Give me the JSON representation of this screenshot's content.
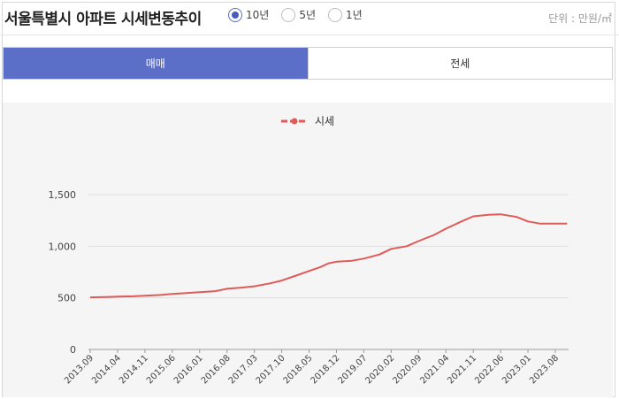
{
  "header": {
    "title": "서울특별시 아파트 시세변동추이",
    "period_options": [
      "10년",
      "5년",
      "1년"
    ],
    "selected_period": "10년",
    "unit": "단위 : 만원/㎡"
  },
  "tabs": [
    {
      "label": "매매",
      "active": true
    },
    {
      "label": "전세",
      "active": false
    }
  ],
  "colors": {
    "accent": "#5b6ec8",
    "series": "#e05a5a",
    "chart_bg": "#f5f5f5"
  },
  "chart_data": {
    "type": "line",
    "legend": "시세",
    "legend_position": "top-center",
    "grid": true,
    "ylim": [
      0,
      1500
    ],
    "yticks": [
      0,
      500,
      1000,
      1500
    ],
    "ytick_labels": [
      "0",
      "500",
      "1,000",
      "1,500"
    ],
    "xtick_labels": [
      "2013.09",
      "2014.04",
      "2014.11",
      "2015.06",
      "2016.01",
      "2016.08",
      "2017.03",
      "2017.10",
      "2018.05",
      "2018.12",
      "2019.07",
      "2020.02",
      "2020.09",
      "2021.04",
      "2021.11",
      "2022.06",
      "2023.01",
      "2023.08"
    ],
    "series": [
      {
        "name": "시세",
        "x": [
          "2013.09",
          "2014.01",
          "2014.04",
          "2014.08",
          "2014.11",
          "2015.03",
          "2015.06",
          "2015.10",
          "2016.01",
          "2016.05",
          "2016.08",
          "2016.12",
          "2017.03",
          "2017.07",
          "2017.10",
          "2018.02",
          "2018.05",
          "2018.08",
          "2018.10",
          "2018.12",
          "2019.04",
          "2019.07",
          "2019.11",
          "2020.02",
          "2020.06",
          "2020.09",
          "2021.01",
          "2021.04",
          "2021.08",
          "2021.11",
          "2022.03",
          "2022.06",
          "2022.10",
          "2023.01",
          "2023.04",
          "2023.08",
          "2023.11"
        ],
        "values": [
          505,
          508,
          512,
          515,
          520,
          528,
          538,
          548,
          555,
          565,
          588,
          600,
          612,
          640,
          668,
          720,
          760,
          800,
          835,
          850,
          860,
          880,
          920,
          975,
          1000,
          1050,
          1110,
          1170,
          1240,
          1290,
          1305,
          1310,
          1285,
          1240,
          1220,
          1220,
          1220
        ]
      }
    ]
  }
}
